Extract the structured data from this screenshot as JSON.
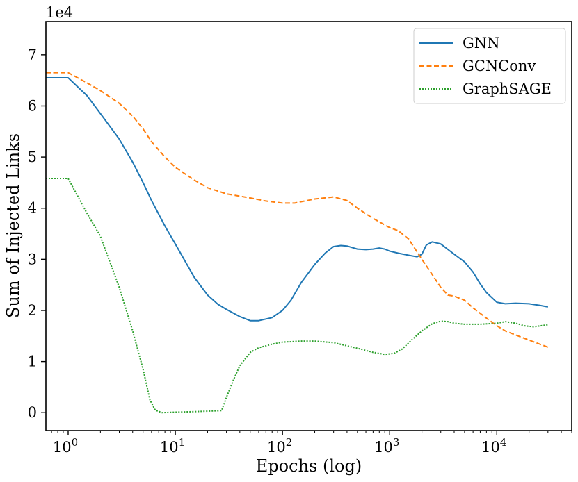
{
  "chart_data": {
    "type": "line",
    "xscale": "log",
    "xlabel": "Epochs (log)",
    "ylabel": "Sum of Injected Links",
    "y_offset_text": "1e4",
    "xlim": [
      0.62,
      50000
    ],
    "ylim": [
      -0.35,
      7.65
    ],
    "y_unit_multiplier": 10000,
    "x_ticks": [
      {
        "value": 1,
        "base": "10",
        "exp": "0"
      },
      {
        "value": 10,
        "base": "10",
        "exp": "1"
      },
      {
        "value": 100,
        "base": "10",
        "exp": "2"
      },
      {
        "value": 1000,
        "base": "10",
        "exp": "3"
      },
      {
        "value": 10000,
        "base": "10",
        "exp": "4"
      }
    ],
    "y_ticks": [
      {
        "value": 0,
        "label": "0"
      },
      {
        "value": 1,
        "label": "1"
      },
      {
        "value": 2,
        "label": "2"
      },
      {
        "value": 3,
        "label": "3"
      },
      {
        "value": 4,
        "label": "4"
      },
      {
        "value": 5,
        "label": "5"
      },
      {
        "value": 6,
        "label": "6"
      },
      {
        "value": 7,
        "label": "7"
      }
    ],
    "legend_position": "top-right",
    "series": [
      {
        "name": "GNN",
        "color": "#1f77b4",
        "style": "solid",
        "points": [
          [
            0.62,
            6.55
          ],
          [
            1,
            6.55
          ],
          [
            1.5,
            6.2
          ],
          [
            2,
            5.85
          ],
          [
            3,
            5.35
          ],
          [
            4,
            4.9
          ],
          [
            5,
            4.5
          ],
          [
            6,
            4.15
          ],
          [
            8,
            3.65
          ],
          [
            10,
            3.3
          ],
          [
            15,
            2.65
          ],
          [
            20,
            2.3
          ],
          [
            25,
            2.12
          ],
          [
            30,
            2.02
          ],
          [
            40,
            1.88
          ],
          [
            50,
            1.8
          ],
          [
            60,
            1.8
          ],
          [
            80,
            1.86
          ],
          [
            100,
            2.0
          ],
          [
            120,
            2.2
          ],
          [
            150,
            2.55
          ],
          [
            200,
            2.9
          ],
          [
            250,
            3.12
          ],
          [
            300,
            3.25
          ],
          [
            350,
            3.27
          ],
          [
            400,
            3.26
          ],
          [
            500,
            3.2
          ],
          [
            600,
            3.19
          ],
          [
            700,
            3.2
          ],
          [
            800,
            3.22
          ],
          [
            900,
            3.2
          ],
          [
            1000,
            3.16
          ],
          [
            1200,
            3.12
          ],
          [
            1500,
            3.08
          ],
          [
            1800,
            3.05
          ],
          [
            2000,
            3.1
          ],
          [
            2200,
            3.28
          ],
          [
            2500,
            3.34
          ],
          [
            3000,
            3.3
          ],
          [
            4000,
            3.1
          ],
          [
            5000,
            2.95
          ],
          [
            6000,
            2.75
          ],
          [
            7000,
            2.52
          ],
          [
            8000,
            2.35
          ],
          [
            10000,
            2.16
          ],
          [
            12000,
            2.13
          ],
          [
            15000,
            2.14
          ],
          [
            20000,
            2.13
          ],
          [
            25000,
            2.1
          ],
          [
            30000,
            2.07
          ]
        ]
      },
      {
        "name": "GCNConv",
        "color": "#ff7f0e",
        "style": "dashed",
        "points": [
          [
            0.62,
            6.65
          ],
          [
            1,
            6.65
          ],
          [
            1.5,
            6.45
          ],
          [
            2,
            6.3
          ],
          [
            3,
            6.05
          ],
          [
            4,
            5.8
          ],
          [
            5,
            5.55
          ],
          [
            6,
            5.3
          ],
          [
            8,
            5.0
          ],
          [
            10,
            4.8
          ],
          [
            15,
            4.55
          ],
          [
            20,
            4.4
          ],
          [
            30,
            4.28
          ],
          [
            50,
            4.2
          ],
          [
            70,
            4.14
          ],
          [
            100,
            4.1
          ],
          [
            130,
            4.1
          ],
          [
            200,
            4.18
          ],
          [
            300,
            4.22
          ],
          [
            400,
            4.15
          ],
          [
            500,
            4.0
          ],
          [
            700,
            3.8
          ],
          [
            1000,
            3.62
          ],
          [
            1200,
            3.56
          ],
          [
            1500,
            3.4
          ],
          [
            2000,
            3.0
          ],
          [
            2500,
            2.7
          ],
          [
            3000,
            2.45
          ],
          [
            3500,
            2.3
          ],
          [
            4000,
            2.28
          ],
          [
            5000,
            2.2
          ],
          [
            6000,
            2.05
          ],
          [
            8000,
            1.85
          ],
          [
            10000,
            1.7
          ],
          [
            12000,
            1.6
          ],
          [
            15000,
            1.52
          ],
          [
            20000,
            1.42
          ],
          [
            30000,
            1.28
          ]
        ]
      },
      {
        "name": "GraphSAGE",
        "color": "#2ca02c",
        "style": "dotted",
        "points": [
          [
            0.62,
            4.58
          ],
          [
            1,
            4.58
          ],
          [
            1.5,
            3.9
          ],
          [
            2,
            3.45
          ],
          [
            3,
            2.45
          ],
          [
            4,
            1.6
          ],
          [
            5,
            0.85
          ],
          [
            5.8,
            0.25
          ],
          [
            6.5,
            0.05
          ],
          [
            7.5,
            0.0
          ],
          [
            10,
            0.01
          ],
          [
            15,
            0.02
          ],
          [
            20,
            0.03
          ],
          [
            27,
            0.04
          ],
          [
            30,
            0.3
          ],
          [
            35,
            0.65
          ],
          [
            40,
            0.92
          ],
          [
            50,
            1.18
          ],
          [
            60,
            1.27
          ],
          [
            80,
            1.34
          ],
          [
            100,
            1.38
          ],
          [
            150,
            1.4
          ],
          [
            200,
            1.4
          ],
          [
            300,
            1.37
          ],
          [
            500,
            1.26
          ],
          [
            700,
            1.18
          ],
          [
            900,
            1.14
          ],
          [
            1100,
            1.16
          ],
          [
            1300,
            1.24
          ],
          [
            1600,
            1.42
          ],
          [
            2000,
            1.6
          ],
          [
            2500,
            1.74
          ],
          [
            3000,
            1.79
          ],
          [
            3500,
            1.78
          ],
          [
            4000,
            1.75
          ],
          [
            5000,
            1.73
          ],
          [
            7000,
            1.73
          ],
          [
            10000,
            1.75
          ],
          [
            12000,
            1.78
          ],
          [
            15000,
            1.75
          ],
          [
            18000,
            1.7
          ],
          [
            22000,
            1.68
          ],
          [
            30000,
            1.72
          ]
        ]
      }
    ]
  }
}
